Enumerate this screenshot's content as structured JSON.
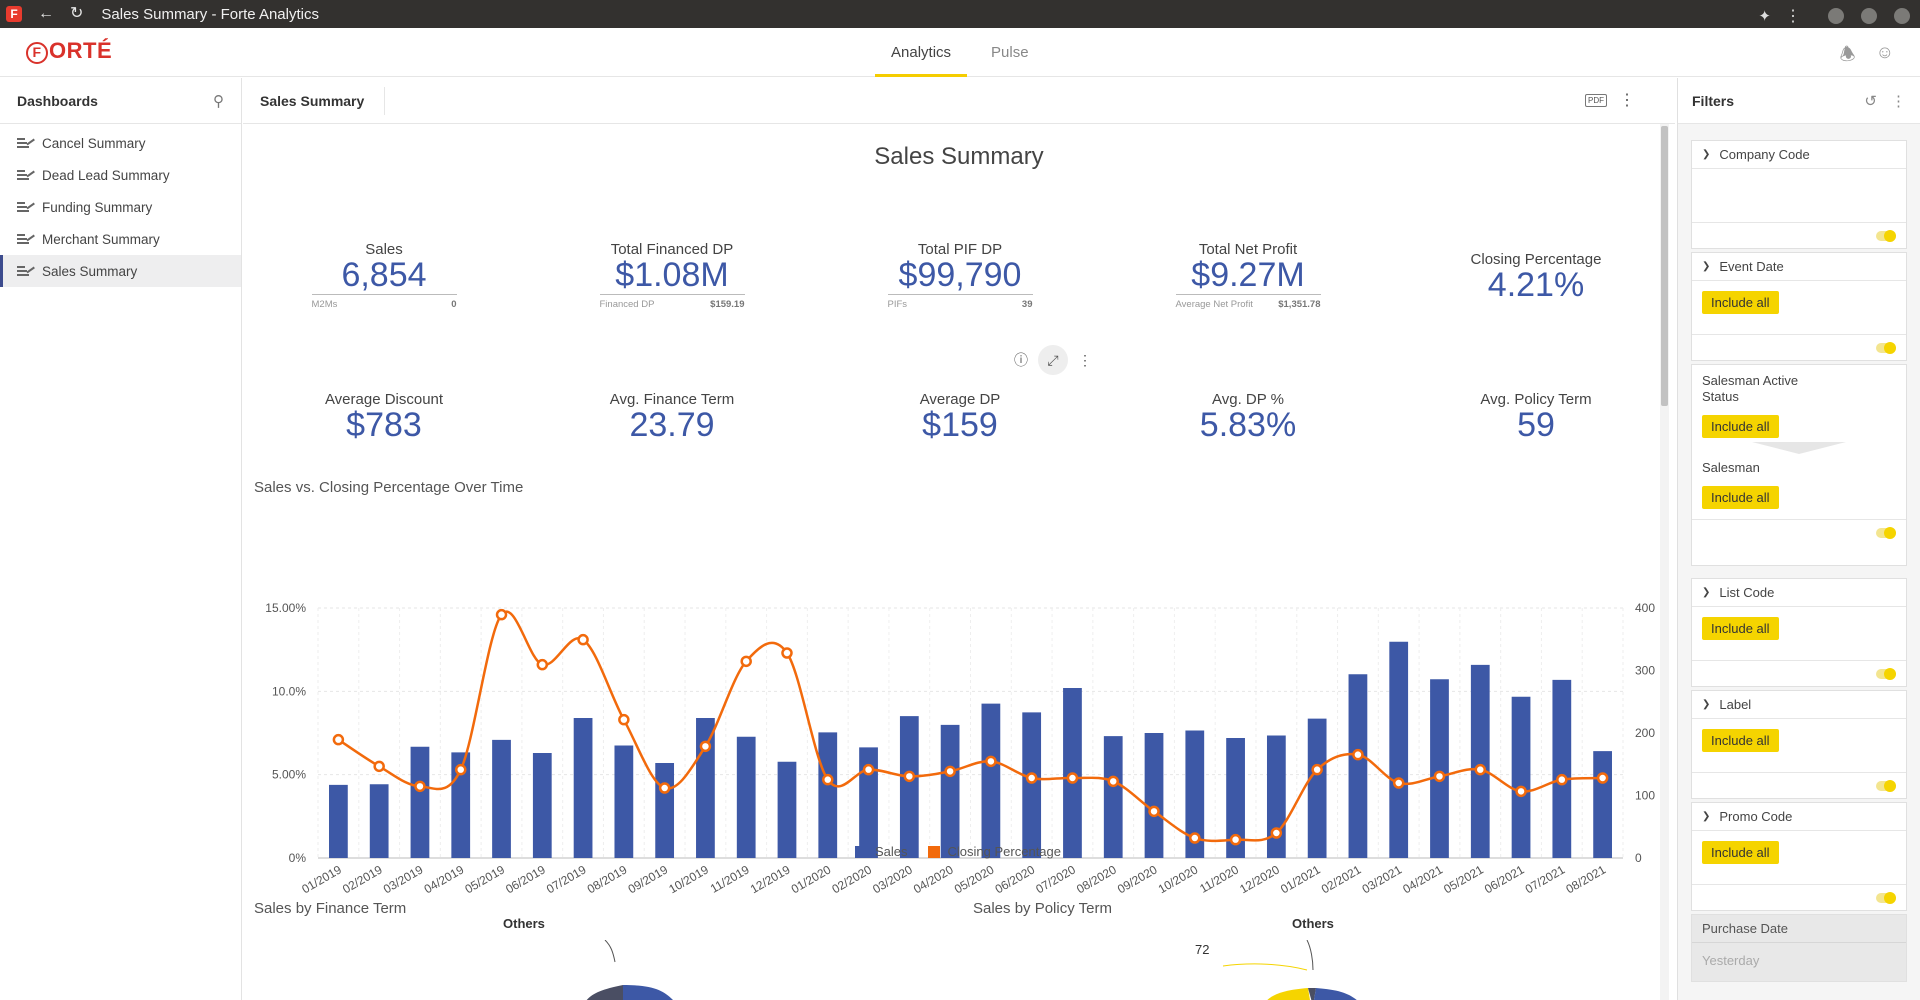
{
  "window": {
    "title": "Sales Summary - Forte Analytics",
    "app_icon": "F"
  },
  "app": {
    "logo": "ORTÉ",
    "logo_mark": "F",
    "tabs": [
      {
        "label": "Analytics",
        "active": true
      },
      {
        "label": "Pulse",
        "active": false
      }
    ]
  },
  "sidebar": {
    "title": "Dashboards",
    "items": [
      {
        "label": "Cancel Summary",
        "active": false
      },
      {
        "label": "Dead Lead Summary",
        "active": false
      },
      {
        "label": "Funding Summary",
        "active": false
      },
      {
        "label": "Merchant Summary",
        "active": false
      },
      {
        "label": "Sales Summary",
        "active": true
      }
    ]
  },
  "main": {
    "header_title": "Sales Summary",
    "pdf_label": "PDF",
    "report_title": "Sales Summary",
    "kpis_row1": [
      {
        "label": "Sales",
        "value": "6,854",
        "sub_label": "M2Ms",
        "sub_value": "0"
      },
      {
        "label": "Total Financed DP",
        "value": "$1.08M",
        "sub_label": "Financed DP",
        "sub_value": "$159.19"
      },
      {
        "label": "Total PIF DP",
        "value": "$99,790",
        "sub_label": "PIFs",
        "sub_value": "39"
      },
      {
        "label": "Total Net Profit",
        "value": "$9.27M",
        "sub_label": "Average Net Profit",
        "sub_value": "$1,351.78"
      },
      {
        "label": "Closing Percentage",
        "value": "4.21%"
      }
    ],
    "kpis_row2": [
      {
        "label": "Average Discount",
        "value": "$783"
      },
      {
        "label": "Avg. Finance Term",
        "value": "23.79"
      },
      {
        "label": "Average DP",
        "value": "$159"
      },
      {
        "label": "Avg. DP %",
        "value": "5.83%"
      },
      {
        "label": "Avg. Policy Term",
        "value": "59"
      }
    ],
    "chart_title": "Sales vs. Closing Percentage Over Time",
    "pie1_title": "Sales by Finance Term",
    "pie2_title": "Sales by Policy Term",
    "pie1_others": "Others",
    "pie2_others": "Others",
    "pie2_value": "72"
  },
  "chart_data": {
    "type": "bar",
    "title": "Sales vs. Closing Percentage Over Time",
    "categories": [
      "01/2019",
      "02/2019",
      "03/2019",
      "04/2019",
      "05/2019",
      "06/2019",
      "07/2019",
      "08/2019",
      "09/2019",
      "10/2019",
      "11/2019",
      "12/2019",
      "01/2020",
      "02/2020",
      "03/2020",
      "04/2020",
      "05/2020",
      "06/2020",
      "07/2020",
      "08/2020",
      "09/2020",
      "10/2020",
      "11/2020",
      "12/2020",
      "01/2021",
      "02/2021",
      "03/2021",
      "04/2021",
      "05/2021",
      "06/2021",
      "07/2021",
      "08/2021"
    ],
    "series": [
      {
        "name": "Sales",
        "type": "bar",
        "axis": "right",
        "color": "#3d58a6",
        "values": [
          117,
          118,
          178,
          169,
          189,
          168,
          224,
          180,
          152,
          224,
          194,
          154,
          201,
          177,
          227,
          213,
          247,
          233,
          272,
          195,
          200,
          204,
          192,
          196,
          223,
          294,
          346,
          286,
          309,
          258,
          285,
          171
        ]
      },
      {
        "name": "Closing Percentage",
        "type": "line",
        "axis": "left",
        "color": "#f26a0c",
        "values": [
          7.1,
          5.5,
          4.3,
          5.3,
          14.6,
          11.6,
          13.1,
          8.3,
          4.2,
          6.7,
          11.8,
          12.3,
          4.7,
          5.3,
          4.9,
          5.2,
          5.8,
          4.8,
          4.8,
          4.6,
          2.8,
          1.2,
          1.1,
          1.5,
          5.3,
          6.2,
          4.5,
          4.9,
          5.3,
          4.0,
          4.7,
          4.8
        ]
      }
    ],
    "y_left": {
      "ticks": [
        "0%",
        "5.00%",
        "10.0%",
        "15.00%"
      ],
      "range": [
        0,
        15
      ]
    },
    "y_right": {
      "ticks": [
        "0",
        "100",
        "200",
        "300",
        "400"
      ],
      "range": [
        0,
        400
      ]
    },
    "grid": true,
    "legend": "bottom"
  },
  "filters": {
    "title": "Filters",
    "include_all_label": "Include all",
    "cards": {
      "company_code": "Company Code",
      "event_date": "Event Date",
      "salesman_active_status": "Salesman Active Status",
      "salesman": "Salesman",
      "list_code": "List Code",
      "label": "Label",
      "promo_code": "Promo Code",
      "purchase_date": "Purchase Date",
      "purchase_date_value": "Yesterday"
    }
  }
}
